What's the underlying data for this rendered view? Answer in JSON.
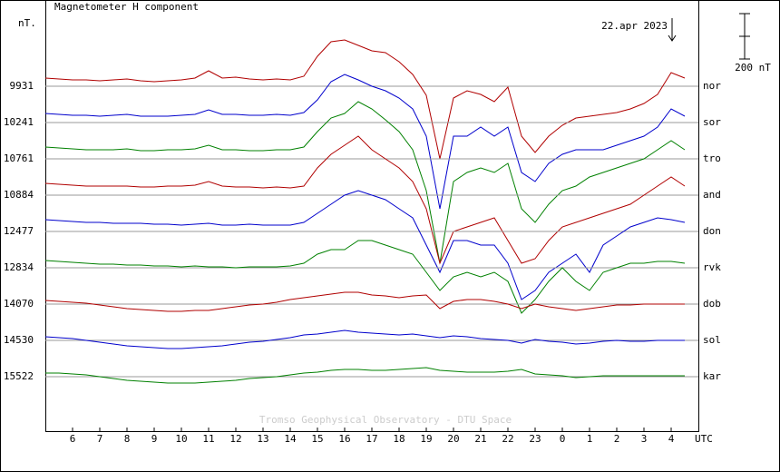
{
  "chart_data": {
    "type": "line",
    "title": "Magnetometer H component",
    "y_label": "nT.",
    "x_label": "UTC",
    "date_label": "22.apr 2023",
    "footer": "Tromso Geophysical Observatory - DTU Space",
    "scale_bar": {
      "value": 200,
      "label": "200 nT"
    },
    "xlim": [
      5,
      29
    ],
    "xticks": [
      6,
      7,
      8,
      9,
      10,
      11,
      12,
      13,
      14,
      15,
      16,
      17,
      18,
      19,
      20,
      21,
      22,
      23,
      {
        "value": 24,
        "label": "0"
      },
      {
        "value": 25,
        "label": "1"
      },
      {
        "value": 26,
        "label": "2"
      },
      {
        "value": 27,
        "label": "3"
      },
      {
        "value": 28,
        "label": "4"
      }
    ],
    "grid": true,
    "x": [
      5,
      5.5,
      6,
      6.5,
      7,
      7.5,
      8,
      8.5,
      9,
      9.5,
      10,
      10.5,
      11,
      11.5,
      12,
      12.5,
      13,
      13.5,
      14,
      14.5,
      15,
      15.5,
      16,
      16.5,
      17,
      17.5,
      18,
      18.5,
      19,
      19.5,
      20,
      20.5,
      21,
      21.5,
      22,
      22.5,
      23,
      23.5,
      24,
      24.5,
      25,
      25.5,
      26,
      26.5,
      27,
      27.5,
      28,
      28.5
    ],
    "series": [
      {
        "name": "nor",
        "baseline": 9931,
        "color": "#b00000",
        "values": [
          36,
          32,
          28,
          28,
          24,
          28,
          32,
          24,
          20,
          24,
          28,
          36,
          68,
          36,
          40,
          32,
          28,
          32,
          28,
          44,
          132,
          196,
          204,
          180,
          156,
          148,
          108,
          52,
          -40,
          -320,
          -52,
          -20,
          -36,
          -68,
          -4,
          -220,
          -292,
          -220,
          -172,
          -140,
          -132,
          -124,
          -116,
          -100,
          -76,
          -36,
          60,
          36
        ]
      },
      {
        "name": "sor",
        "baseline": 10241,
        "color": "#0000cc",
        "values": [
          40,
          36,
          32,
          32,
          28,
          32,
          36,
          28,
          28,
          28,
          32,
          36,
          56,
          36,
          36,
          32,
          32,
          36,
          32,
          44,
          100,
          180,
          212,
          188,
          160,
          140,
          108,
          60,
          -60,
          -380,
          -60,
          -60,
          -20,
          -60,
          -20,
          -220,
          -260,
          -180,
          -140,
          -120,
          -120,
          -120,
          -100,
          -80,
          -60,
          -20,
          60,
          28
        ]
      },
      {
        "name": "tro",
        "baseline": 10761,
        "color": "#008000",
        "values": [
          52,
          48,
          44,
          40,
          40,
          40,
          44,
          36,
          36,
          40,
          40,
          44,
          60,
          40,
          40,
          36,
          36,
          40,
          40,
          52,
          120,
          180,
          200,
          252,
          220,
          172,
          120,
          40,
          -140,
          -460,
          -100,
          -60,
          -40,
          -60,
          -20,
          -220,
          -280,
          -200,
          -140,
          -120,
          -80,
          -60,
          -40,
          -20,
          0,
          40,
          80,
          40
        ]
      },
      {
        "name": "and",
        "baseline": 10884,
        "color": "#b00000",
        "values": [
          52,
          48,
          44,
          40,
          40,
          40,
          40,
          36,
          36,
          40,
          40,
          44,
          60,
          40,
          36,
          36,
          32,
          36,
          32,
          40,
          120,
          180,
          220,
          260,
          200,
          160,
          120,
          60,
          -60,
          -300,
          -160,
          -140,
          -120,
          -100,
          -200,
          -300,
          -280,
          -200,
          -140,
          -120,
          -100,
          -80,
          -60,
          -40,
          0,
          40,
          80,
          40
        ]
      },
      {
        "name": "don",
        "baseline": 12477,
        "color": "#0000cc",
        "values": [
          52,
          48,
          44,
          40,
          40,
          36,
          36,
          36,
          32,
          32,
          28,
          32,
          36,
          28,
          28,
          32,
          28,
          28,
          28,
          40,
          80,
          120,
          160,
          180,
          160,
          140,
          100,
          60,
          -60,
          -180,
          -40,
          -40,
          -60,
          -60,
          -140,
          -300,
          -260,
          -180,
          -140,
          -100,
          -180,
          -60,
          -20,
          20,
          40,
          60,
          52,
          40
        ]
      },
      {
        "name": "rvk",
        "baseline": 12834,
        "color": "#008000",
        "values": [
          32,
          28,
          24,
          20,
          16,
          16,
          12,
          12,
          8,
          8,
          4,
          8,
          4,
          4,
          0,
          4,
          4,
          4,
          8,
          20,
          60,
          80,
          80,
          120,
          120,
          100,
          80,
          60,
          -20,
          -100,
          -40,
          -20,
          -40,
          -20,
          -60,
          -200,
          -140,
          -60,
          0,
          -60,
          -100,
          -20,
          0,
          20,
          20,
          28,
          28,
          20
        ]
      },
      {
        "name": "dob",
        "baseline": 14070,
        "color": "#b00000",
        "values": [
          16,
          12,
          8,
          4,
          -4,
          -12,
          -20,
          -24,
          -28,
          -32,
          -32,
          -28,
          -28,
          -20,
          -12,
          -4,
          0,
          8,
          20,
          28,
          36,
          44,
          52,
          52,
          40,
          36,
          28,
          36,
          40,
          -20,
          12,
          20,
          20,
          12,
          0,
          -20,
          0,
          -12,
          -20,
          -28,
          -20,
          -12,
          -4,
          -4,
          0,
          0,
          0,
          0
        ]
      },
      {
        "name": "sol",
        "baseline": 14530,
        "color": "#0000cc",
        "values": [
          16,
          12,
          8,
          0,
          -8,
          -16,
          -24,
          -28,
          -32,
          -36,
          -36,
          -32,
          -28,
          -24,
          -16,
          -8,
          -4,
          4,
          12,
          24,
          28,
          36,
          44,
          36,
          32,
          28,
          24,
          28,
          20,
          12,
          20,
          16,
          8,
          4,
          0,
          -12,
          4,
          -4,
          -8,
          -16,
          -12,
          -4,
          0,
          -4,
          -4,
          0,
          0,
          0
        ]
      },
      {
        "name": "kar",
        "baseline": 15522,
        "color": "#008000",
        "values": [
          16,
          16,
          12,
          8,
          0,
          -8,
          -16,
          -20,
          -24,
          -28,
          -28,
          -28,
          -24,
          -20,
          -16,
          -8,
          -4,
          0,
          8,
          16,
          20,
          28,
          32,
          32,
          28,
          28,
          32,
          36,
          40,
          28,
          24,
          20,
          20,
          20,
          24,
          32,
          12,
          8,
          4,
          -4,
          0,
          4,
          4,
          4,
          4,
          4,
          4,
          4
        ]
      }
    ]
  }
}
